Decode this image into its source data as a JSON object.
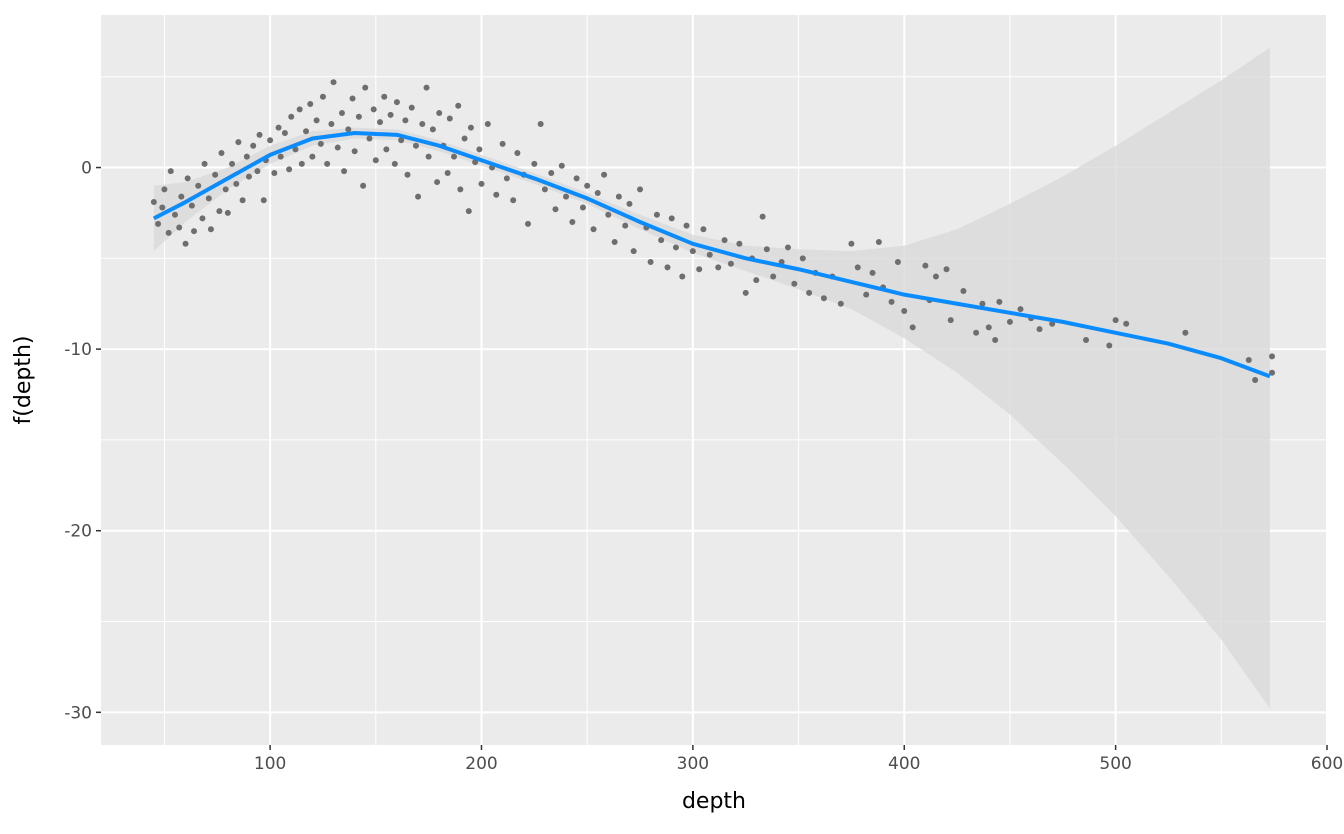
{
  "chart_data": {
    "type": "scatter",
    "title": "",
    "xlabel": "depth",
    "ylabel": "f(depth)",
    "xlim": [
      20,
      600
    ],
    "ylim": [
      -31.8,
      8.4
    ],
    "xticks": [
      100,
      200,
      300,
      400,
      500,
      600
    ],
    "yticks": [
      0,
      -10,
      -20,
      -30
    ],
    "grid": true,
    "colors": {
      "panel": "#EBEBEB",
      "grid": "#FFFFFF",
      "points": "#6E6E6E",
      "smooth": "#0A8CFF",
      "ribbon": "#D9D9D9"
    },
    "smooth": {
      "x": [
        45,
        60,
        80,
        100,
        120,
        140,
        160,
        180,
        200,
        225,
        250,
        275,
        300,
        325,
        350,
        375,
        400,
        425,
        450,
        475,
        500,
        525,
        550,
        573
      ],
      "y": [
        -2.8,
        -1.9,
        -0.6,
        0.7,
        1.6,
        1.9,
        1.8,
        1.2,
        0.4,
        -0.6,
        -1.7,
        -3.0,
        -4.2,
        -5.0,
        -5.6,
        -6.3,
        -7.0,
        -7.5,
        -8.0,
        -8.5,
        -9.1,
        -9.7,
        -10.5,
        -11.5
      ],
      "lower": [
        -4.6,
        -3.0,
        -1.2,
        0.2,
        1.2,
        1.6,
        1.5,
        0.9,
        0.1,
        -0.9,
        -2.0,
        -3.4,
        -4.7,
        -5.7,
        -6.7,
        -7.8,
        -9.4,
        -11.3,
        -13.6,
        -16.3,
        -19.2,
        -22.5,
        -26.0,
        -29.8
      ],
      "upper": [
        -1.0,
        -0.8,
        0.0,
        1.2,
        2.0,
        2.2,
        2.1,
        1.5,
        0.7,
        -0.3,
        -1.4,
        -2.6,
        -3.7,
        -4.3,
        -4.5,
        -4.6,
        -4.3,
        -3.4,
        -2.0,
        -0.5,
        1.2,
        3.0,
        4.8,
        6.6
      ]
    },
    "points": [
      [
        45,
        -1.9
      ],
      [
        47,
        -3.1
      ],
      [
        49,
        -2.2
      ],
      [
        50,
        -1.2
      ],
      [
        52,
        -3.6
      ],
      [
        53,
        -0.2
      ],
      [
        55,
        -2.6
      ],
      [
        57,
        -3.3
      ],
      [
        58,
        -1.6
      ],
      [
        60,
        -4.2
      ],
      [
        61,
        -0.6
      ],
      [
        63,
        -2.1
      ],
      [
        64,
        -3.5
      ],
      [
        66,
        -1.0
      ],
      [
        68,
        -2.8
      ],
      [
        69,
        0.2
      ],
      [
        71,
        -1.7
      ],
      [
        72,
        -3.4
      ],
      [
        74,
        -0.4
      ],
      [
        76,
        -2.4
      ],
      [
        77,
        0.8
      ],
      [
        79,
        -1.2
      ],
      [
        80,
        -2.5
      ],
      [
        82,
        0.2
      ],
      [
        84,
        -0.9
      ],
      [
        85,
        1.4
      ],
      [
        87,
        -1.8
      ],
      [
        89,
        0.6
      ],
      [
        90,
        -0.5
      ],
      [
        92,
        1.2
      ],
      [
        94,
        -0.2
      ],
      [
        95,
        1.8
      ],
      [
        97,
        -1.8
      ],
      [
        98,
        0.4
      ],
      [
        100,
        1.5
      ],
      [
        102,
        -0.3
      ],
      [
        104,
        2.2
      ],
      [
        105,
        0.6
      ],
      [
        107,
        1.9
      ],
      [
        109,
        -0.1
      ],
      [
        110,
        2.8
      ],
      [
        112,
        1.0
      ],
      [
        114,
        3.2
      ],
      [
        115,
        0.2
      ],
      [
        117,
        2.0
      ],
      [
        119,
        3.5
      ],
      [
        120,
        0.6
      ],
      [
        122,
        2.6
      ],
      [
        124,
        1.3
      ],
      [
        125,
        3.9
      ],
      [
        127,
        0.2
      ],
      [
        129,
        2.4
      ],
      [
        130,
        4.7
      ],
      [
        132,
        1.1
      ],
      [
        134,
        3.0
      ],
      [
        135,
        -0.2
      ],
      [
        137,
        2.1
      ],
      [
        139,
        3.8
      ],
      [
        140,
        0.9
      ],
      [
        142,
        2.8
      ],
      [
        144,
        -1.0
      ],
      [
        145,
        4.4
      ],
      [
        147,
        1.6
      ],
      [
        149,
        3.2
      ],
      [
        150,
        0.4
      ],
      [
        152,
        2.5
      ],
      [
        154,
        3.9
      ],
      [
        155,
        1.0
      ],
      [
        157,
        2.9
      ],
      [
        159,
        0.2
      ],
      [
        160,
        3.6
      ],
      [
        162,
        1.5
      ],
      [
        164,
        2.6
      ],
      [
        165,
        -0.4
      ],
      [
        167,
        3.3
      ],
      [
        169,
        1.2
      ],
      [
        170,
        -1.6
      ],
      [
        172,
        2.4
      ],
      [
        174,
        4.4
      ],
      [
        175,
        0.6
      ],
      [
        177,
        2.1
      ],
      [
        179,
        -0.8
      ],
      [
        180,
        3.0
      ],
      [
        182,
        1.2
      ],
      [
        184,
        -0.3
      ],
      [
        185,
        2.7
      ],
      [
        187,
        0.6
      ],
      [
        189,
        3.4
      ],
      [
        190,
        -1.2
      ],
      [
        192,
        1.6
      ],
      [
        194,
        -2.4
      ],
      [
        195,
        2.2
      ],
      [
        197,
        0.3
      ],
      [
        199,
        1.0
      ],
      [
        200,
        -0.9
      ],
      [
        203,
        2.4
      ],
      [
        205,
        0.0
      ],
      [
        207,
        -1.5
      ],
      [
        210,
        1.3
      ],
      [
        212,
        -0.6
      ],
      [
        215,
        -1.8
      ],
      [
        217,
        0.8
      ],
      [
        220,
        -0.4
      ],
      [
        222,
        -3.1
      ],
      [
        225,
        0.2
      ],
      [
        228,
        2.4
      ],
      [
        230,
        -1.2
      ],
      [
        233,
        -0.3
      ],
      [
        235,
        -2.3
      ],
      [
        238,
        0.1
      ],
      [
        240,
        -1.6
      ],
      [
        243,
        -3.0
      ],
      [
        245,
        -0.6
      ],
      [
        248,
        -2.2
      ],
      [
        250,
        -1.0
      ],
      [
        253,
        -3.4
      ],
      [
        255,
        -1.4
      ],
      [
        258,
        -0.4
      ],
      [
        260,
        -2.6
      ],
      [
        263,
        -4.1
      ],
      [
        265,
        -1.6
      ],
      [
        268,
        -3.2
      ],
      [
        270,
        -2.0
      ],
      [
        272,
        -4.6
      ],
      [
        275,
        -1.2
      ],
      [
        278,
        -3.3
      ],
      [
        280,
        -5.2
      ],
      [
        283,
        -2.6
      ],
      [
        285,
        -4.0
      ],
      [
        288,
        -5.5
      ],
      [
        290,
        -2.8
      ],
      [
        292,
        -4.4
      ],
      [
        295,
        -6.0
      ],
      [
        297,
        -3.2
      ],
      [
        300,
        -4.6
      ],
      [
        303,
        -5.6
      ],
      [
        305,
        -3.4
      ],
      [
        308,
        -4.8
      ],
      [
        312,
        -5.5
      ],
      [
        315,
        -4.0
      ],
      [
        318,
        -5.3
      ],
      [
        322,
        -4.2
      ],
      [
        325,
        -6.9
      ],
      [
        328,
        -5.0
      ],
      [
        330,
        -6.2
      ],
      [
        333,
        -2.7
      ],
      [
        335,
        -4.5
      ],
      [
        338,
        -6.0
      ],
      [
        342,
        -5.2
      ],
      [
        345,
        -4.4
      ],
      [
        348,
        -6.4
      ],
      [
        352,
        -5.0
      ],
      [
        355,
        -6.9
      ],
      [
        358,
        -5.8
      ],
      [
        362,
        -7.2
      ],
      [
        366,
        -6.0
      ],
      [
        370,
        -7.5
      ],
      [
        375,
        -4.2
      ],
      [
        378,
        -5.5
      ],
      [
        382,
        -7.0
      ],
      [
        385,
        -5.8
      ],
      [
        388,
        -4.1
      ],
      [
        390,
        -6.6
      ],
      [
        394,
        -7.4
      ],
      [
        397,
        -5.2
      ],
      [
        400,
        -7.9
      ],
      [
        404,
        -8.8
      ],
      [
        410,
        -5.4
      ],
      [
        412,
        -7.3
      ],
      [
        415,
        -6.0
      ],
      [
        420,
        -5.6
      ],
      [
        422,
        -8.4
      ],
      [
        428,
        -6.8
      ],
      [
        434,
        -9.1
      ],
      [
        437,
        -7.5
      ],
      [
        440,
        -8.8
      ],
      [
        443,
        -9.5
      ],
      [
        445,
        -7.4
      ],
      [
        450,
        -8.5
      ],
      [
        455,
        -7.8
      ],
      [
        460,
        -8.3
      ],
      [
        464,
        -8.9
      ],
      [
        470,
        -8.6
      ],
      [
        486,
        -9.5
      ],
      [
        497,
        -9.8
      ],
      [
        500,
        -8.4
      ],
      [
        505,
        -8.6
      ],
      [
        533,
        -9.1
      ],
      [
        563,
        -10.6
      ],
      [
        566,
        -11.7
      ],
      [
        574,
        -10.4
      ],
      [
        574,
        -11.3
      ]
    ]
  }
}
